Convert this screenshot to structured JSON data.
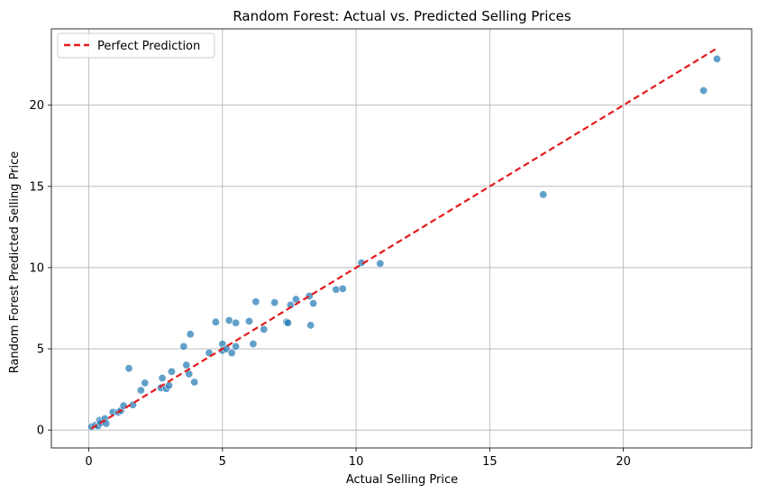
{
  "chart_data": {
    "type": "scatter",
    "title": "Random Forest: Actual vs. Predicted Selling Prices",
    "xlabel": "Actual Selling Price",
    "ylabel": "Random Forest Predicted Selling Price",
    "xlim": [
      -1.4,
      24.8
    ],
    "ylim": [
      -1.1,
      24.7
    ],
    "xticks": [
      0,
      5,
      10,
      15,
      20
    ],
    "yticks": [
      0,
      5,
      10,
      15,
      20
    ],
    "grid": true,
    "legend_position": "top-left",
    "point_color": "#1f77b4",
    "line_color": "#e41a1c",
    "series": [
      {
        "name": "",
        "kind": "scatter",
        "points": [
          [
            0.1,
            0.2
          ],
          [
            0.25,
            0.3
          ],
          [
            0.35,
            0.25
          ],
          [
            0.4,
            0.6
          ],
          [
            0.45,
            0.45
          ],
          [
            0.6,
            0.7
          ],
          [
            0.65,
            0.4
          ],
          [
            0.9,
            1.1
          ],
          [
            1.1,
            1.1
          ],
          [
            1.2,
            1.2
          ],
          [
            1.3,
            1.5
          ],
          [
            1.5,
            3.8
          ],
          [
            1.65,
            1.55
          ],
          [
            1.95,
            2.45
          ],
          [
            2.1,
            2.9
          ],
          [
            2.7,
            2.6
          ],
          [
            2.75,
            3.2
          ],
          [
            2.9,
            2.55
          ],
          [
            3.0,
            2.75
          ],
          [
            3.1,
            3.6
          ],
          [
            3.55,
            5.15
          ],
          [
            3.65,
            4.0
          ],
          [
            3.75,
            3.45
          ],
          [
            3.8,
            5.9
          ],
          [
            3.95,
            2.95
          ],
          [
            4.5,
            4.75
          ],
          [
            4.75,
            6.65
          ],
          [
            5.0,
            5.3
          ],
          [
            5.0,
            4.9
          ],
          [
            5.15,
            5.0
          ],
          [
            5.25,
            6.75
          ],
          [
            5.35,
            4.75
          ],
          [
            5.5,
            5.15
          ],
          [
            5.5,
            6.6
          ],
          [
            6.0,
            6.7
          ],
          [
            6.15,
            5.3
          ],
          [
            6.25,
            7.9
          ],
          [
            6.55,
            6.2
          ],
          [
            6.95,
            7.85
          ],
          [
            7.4,
            6.65
          ],
          [
            7.45,
            6.6
          ],
          [
            7.55,
            7.7
          ],
          [
            7.75,
            8.05
          ],
          [
            8.25,
            8.25
          ],
          [
            8.3,
            6.45
          ],
          [
            8.4,
            7.8
          ],
          [
            9.25,
            8.65
          ],
          [
            9.5,
            8.7
          ],
          [
            10.2,
            10.3
          ],
          [
            10.9,
            10.25
          ],
          [
            17.0,
            14.5
          ],
          [
            23.0,
            20.9
          ],
          [
            23.5,
            22.85
          ]
        ]
      },
      {
        "name": "Perfect Prediction",
        "kind": "line",
        "style": "dashed",
        "points": [
          [
            0.1,
            0.1
          ],
          [
            23.5,
            23.5
          ]
        ]
      }
    ]
  }
}
